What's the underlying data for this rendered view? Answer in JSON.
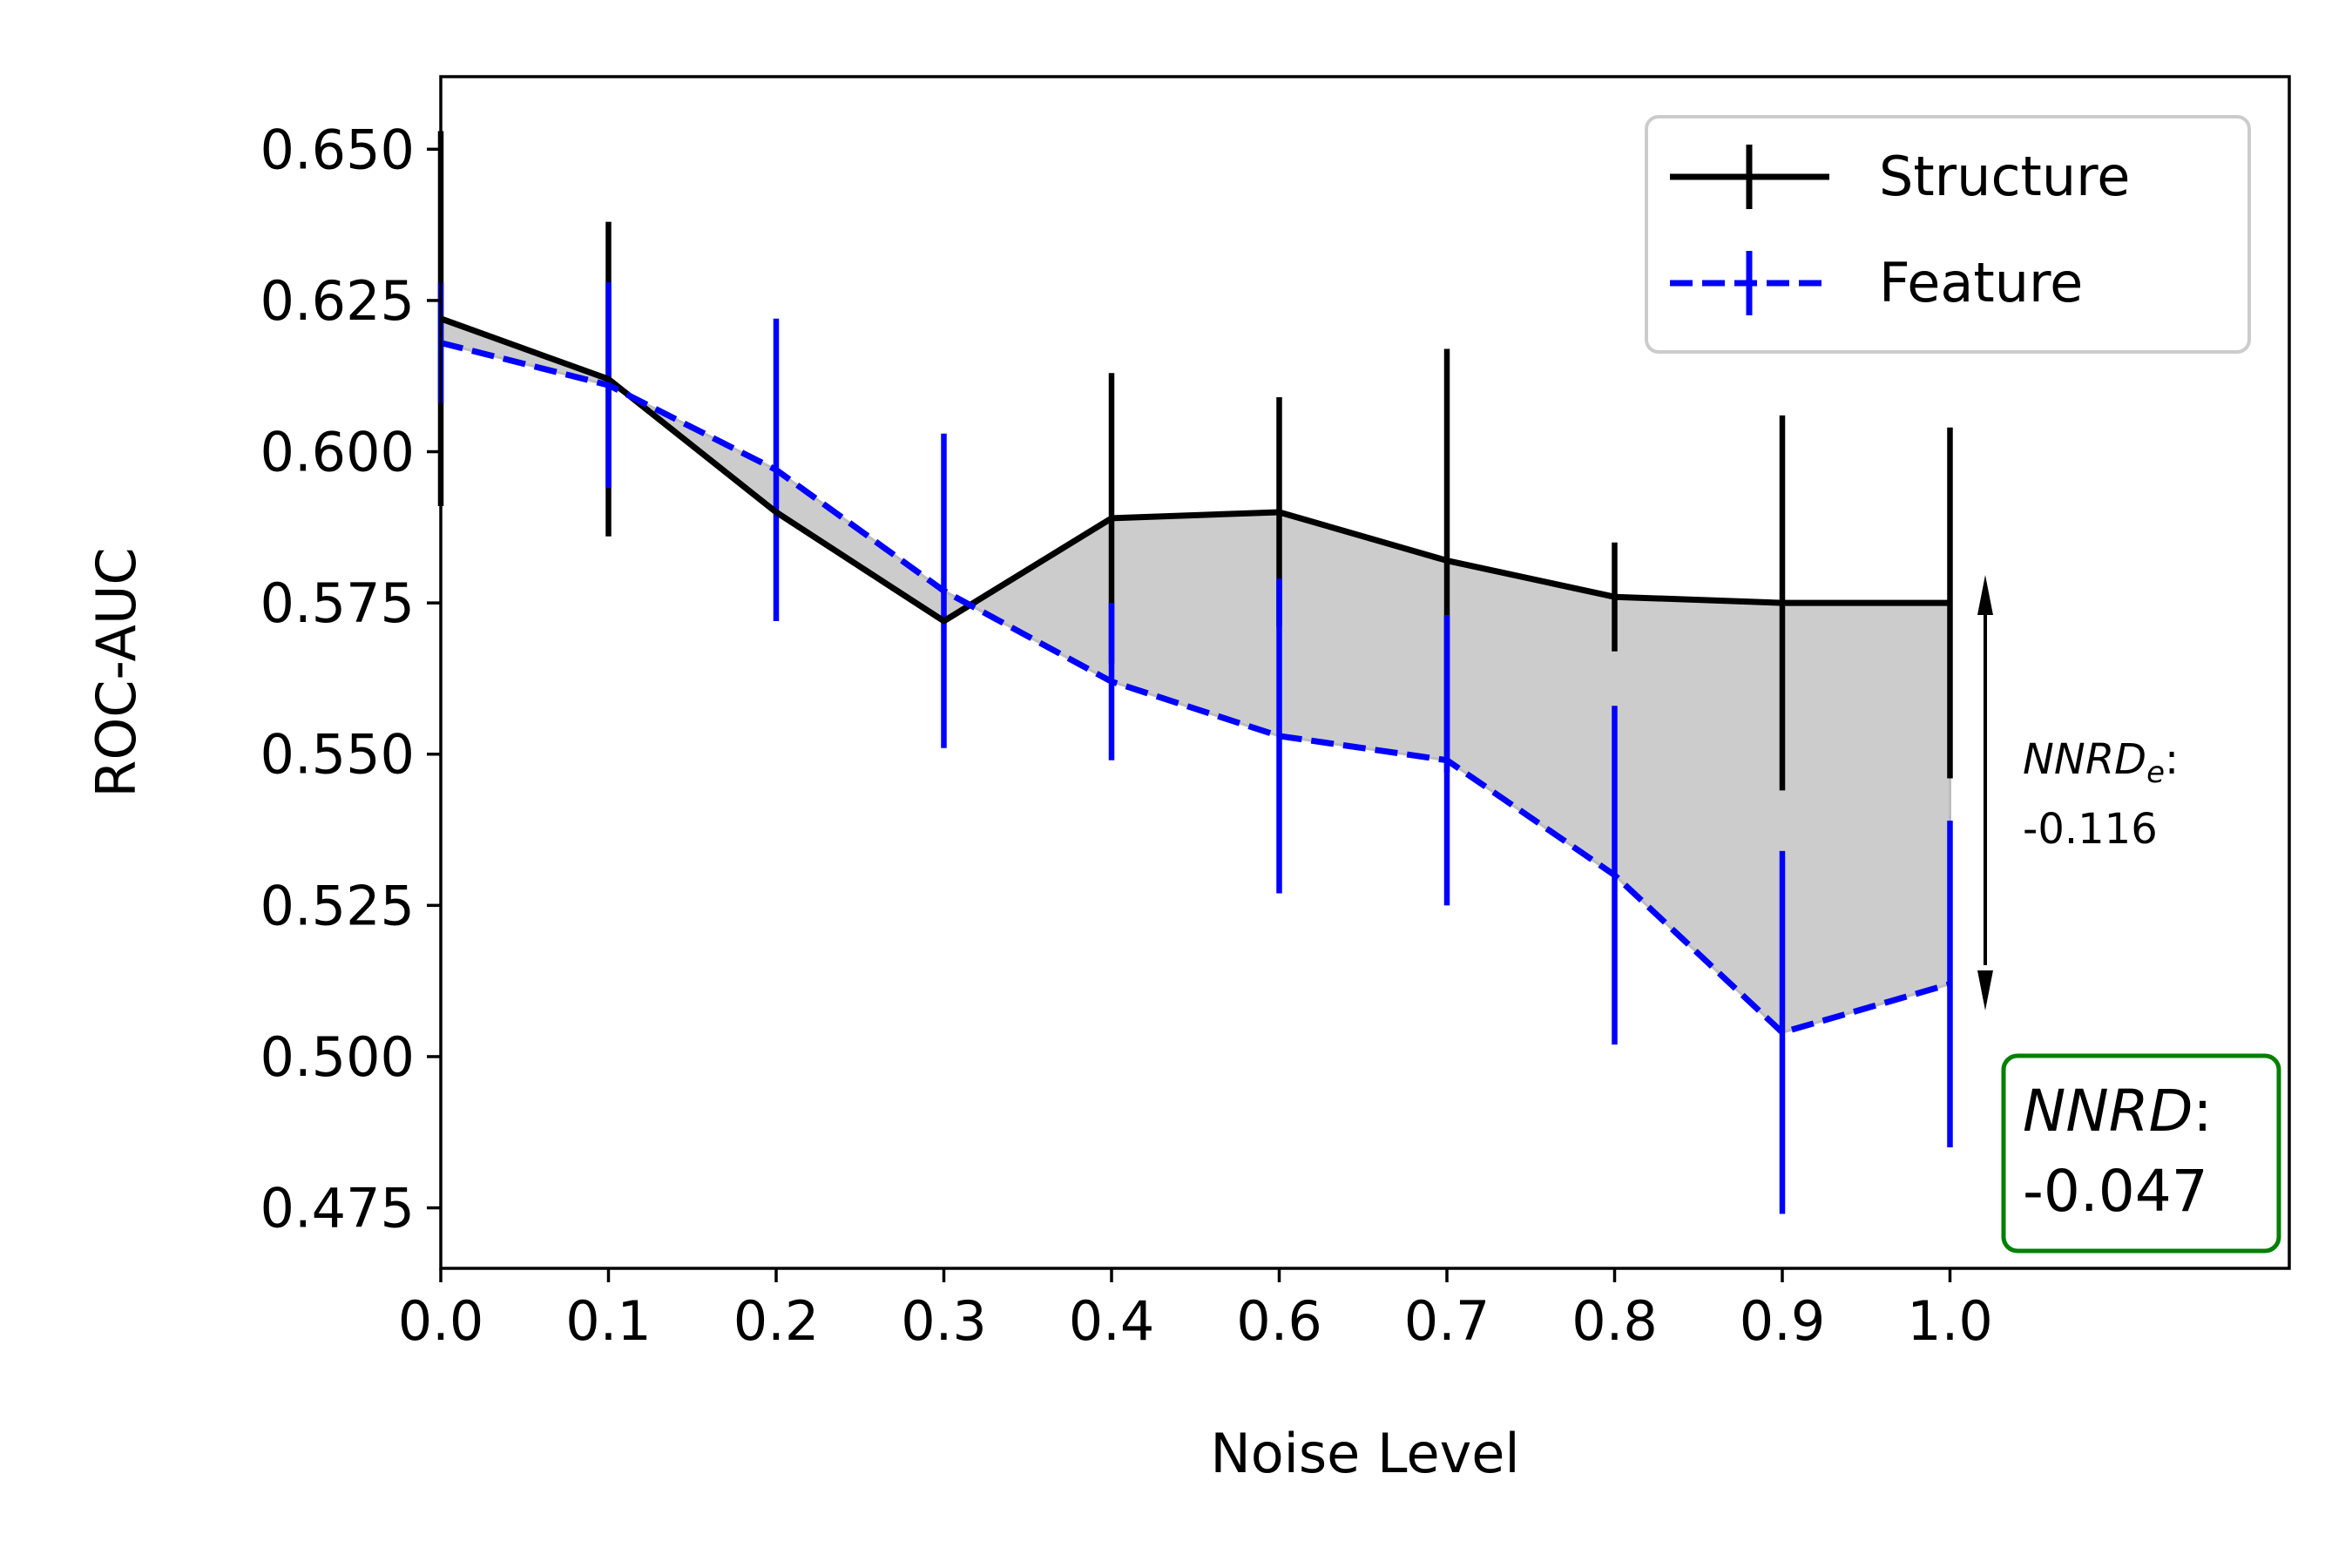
{
  "chart_data": {
    "type": "line",
    "xlabel": "Noise Level",
    "ylabel": "ROC-AUC",
    "categories": [
      "0.0",
      "0.1",
      "0.2",
      "0.3",
      "0.4",
      "0.6",
      "0.7",
      "0.8",
      "0.9",
      "1.0"
    ],
    "ylim": [
      0.465,
      0.662
    ],
    "yticks": [
      "0.475",
      "0.500",
      "0.525",
      "0.550",
      "0.575",
      "0.600",
      "0.625",
      "0.650"
    ],
    "grid": false,
    "legend_position": "top-right",
    "shade_between_series": true,
    "series": [
      {
        "name": "Structure",
        "style": "solid",
        "color": "#000000",
        "values": [
          0.622,
          0.612,
          0.59,
          0.572,
          0.589,
          0.59,
          0.582,
          0.576,
          0.575,
          0.575
        ],
        "errors": [
          0.031,
          0.026,
          0.0,
          0.0,
          0.024,
          0.019,
          0.035,
          0.009,
          0.031,
          0.029
        ]
      },
      {
        "name": "Feature",
        "style": "dashed",
        "color": "#0000ff",
        "values": [
          0.618,
          0.611,
          0.597,
          0.577,
          0.562,
          0.553,
          0.549,
          0.53,
          0.504,
          0.512
        ],
        "errors": [
          0.01,
          0.017,
          0.025,
          0.026,
          0.013,
          0.026,
          0.024,
          0.028,
          0.03,
          0.027
        ]
      }
    ],
    "annotations": {
      "nnrd_e_label": "NNRD",
      "nnrd_e_subscript": "e",
      "nnrd_e_colon": ":",
      "nnrd_e_value": "-0.116",
      "nnrd_label": "NNRD",
      "nnrd_colon": ":",
      "nnrd_value": "-0.047",
      "nnrd_box_color": "#008000"
    }
  }
}
